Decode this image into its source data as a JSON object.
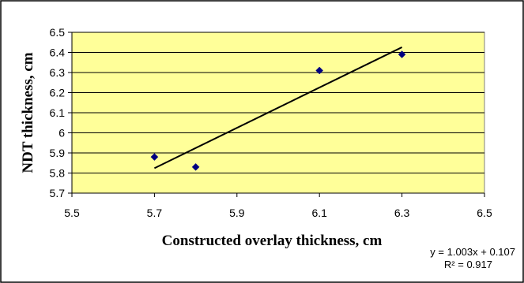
{
  "chart_data": {
    "type": "scatter",
    "title": "",
    "xlabel": "Constructed overlay thickness, cm",
    "ylabel": "NDT thickness, cm",
    "xlim": [
      5.5,
      6.5
    ],
    "ylim": [
      5.7,
      6.5
    ],
    "x_ticks": [
      "5.5",
      "5.7",
      "5.9",
      "6.1",
      "6.3",
      "6.5"
    ],
    "y_ticks": [
      "5.7",
      "5.8",
      "5.9",
      "6",
      "6.1",
      "6.2",
      "6.3",
      "6.4",
      "6.5"
    ],
    "grid": true,
    "series": [
      {
        "x": [
          5.7,
          5.8,
          6.1,
          6.3
        ],
        "y": [
          5.88,
          5.83,
          6.31,
          6.39
        ]
      }
    ],
    "trendline": {
      "type": "linear",
      "slope": 1.003,
      "intercept": 0.107,
      "x_range": [
        5.7,
        6.3
      ],
      "equation_label": "y = 1.003x + 0.107",
      "r2_label": "R² = 0.917"
    },
    "colors": {
      "plot_background": "#FFFF99",
      "marker": "#000080",
      "gridline": "#000000",
      "trendline": "#000000",
      "frame": "#000000"
    }
  }
}
